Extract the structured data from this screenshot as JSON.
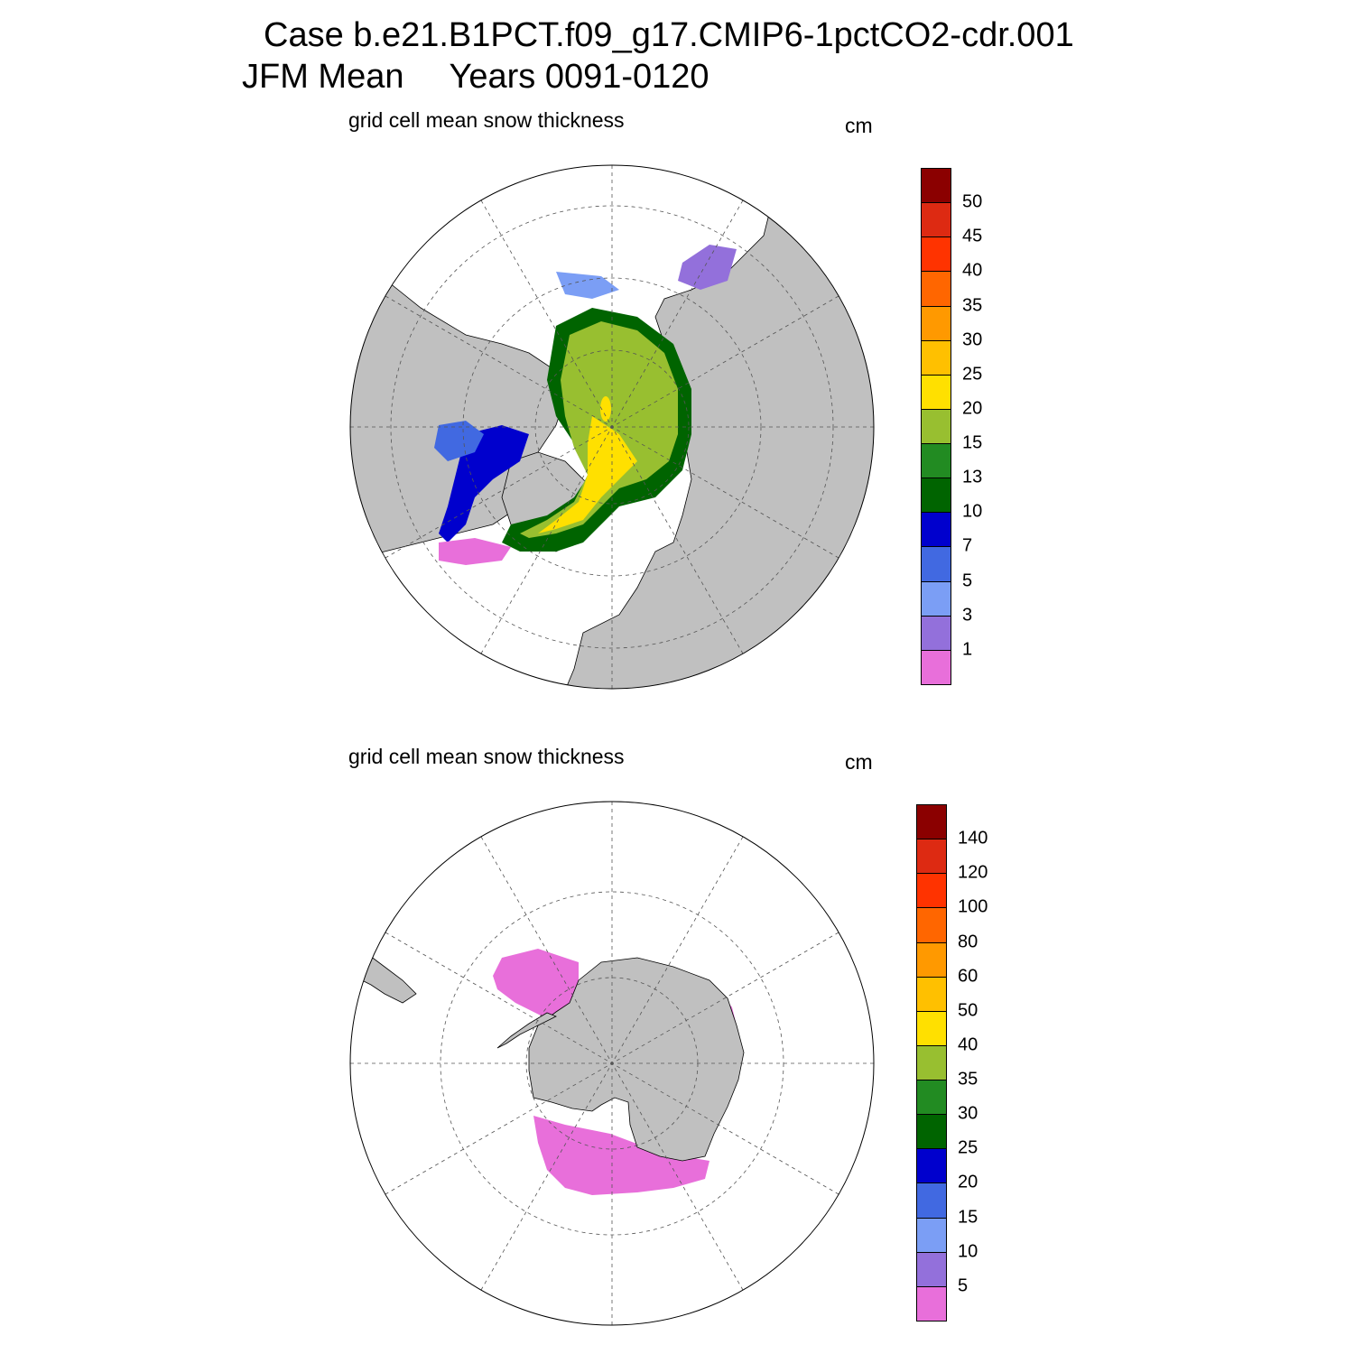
{
  "title": {
    "line1": "Case b.e21.B1PCT.f09_g17.CMIP6-1pctCO2-cdr.001",
    "season": "JFM Mean",
    "years": "Years 0091-0120"
  },
  "colors": {
    "land": "#c0c0c0",
    "ocean": "#ffffff",
    "scale": [
      "#e86fda",
      "#9370db",
      "#7b9ef5",
      "#4169e1",
      "#0000cd",
      "#006400",
      "#228b22",
      "#98bf30",
      "#ffe000",
      "#ffc000",
      "#ff9900",
      "#ff6600",
      "#ff3300",
      "#dd2a12",
      "#8b0000"
    ]
  },
  "north": {
    "panel_title": "grid cell mean snow thickness",
    "units": "cm",
    "colorbar_levels": [
      "1",
      "3",
      "5",
      "7",
      "10",
      "13",
      "15",
      "20",
      "25",
      "30",
      "35",
      "40",
      "45",
      "50"
    ]
  },
  "south": {
    "panel_title": "grid cell mean snow thickness",
    "units": "cm",
    "colorbar_levels": [
      "5",
      "10",
      "15",
      "20",
      "25",
      "30",
      "35",
      "40",
      "50",
      "60",
      "80",
      "100",
      "120",
      "140"
    ]
  }
}
